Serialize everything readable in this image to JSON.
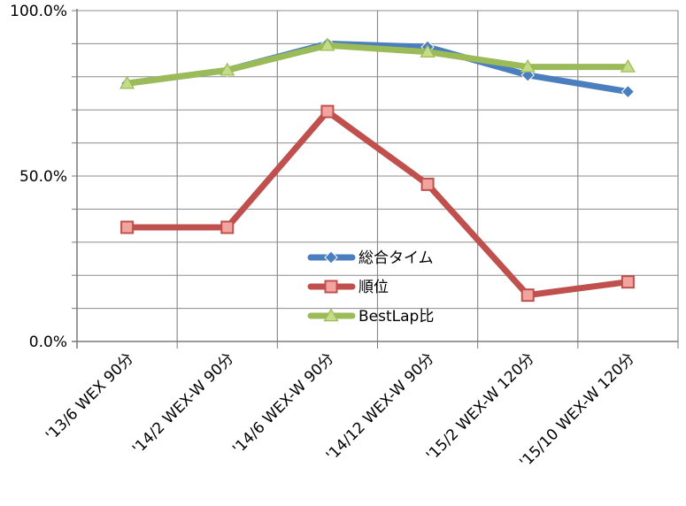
{
  "chart_data": {
    "type": "line",
    "categories": [
      "'13/6 WEX 90分",
      "'14/2 WEX-W 90分",
      "'14/6 WEX-W 90分",
      "'14/12 WEX-W 90分",
      "'15/2 WEX-W 120分",
      "'15/10 WEX-W 120分"
    ],
    "series": [
      {
        "name": "総合タイム",
        "color": "#4a7ebf",
        "marker": "diamond",
        "values": [
          78,
          82,
          90,
          89,
          80.5,
          75.5
        ]
      },
      {
        "name": "順位",
        "color": "#c0504d",
        "marker": "square",
        "values": [
          34.5,
          34.5,
          69.5,
          47.5,
          14,
          18
        ]
      },
      {
        "name": "BestLap比",
        "color": "#9bbb59",
        "marker": "triangle",
        "values": [
          78,
          82,
          89.5,
          87.5,
          83,
          83
        ]
      }
    ],
    "yticks": [
      "0.0%",
      "50.0%",
      "100.0%"
    ],
    "ylim": [
      0,
      100
    ],
    "grid": true,
    "legend_position": "center-right"
  }
}
